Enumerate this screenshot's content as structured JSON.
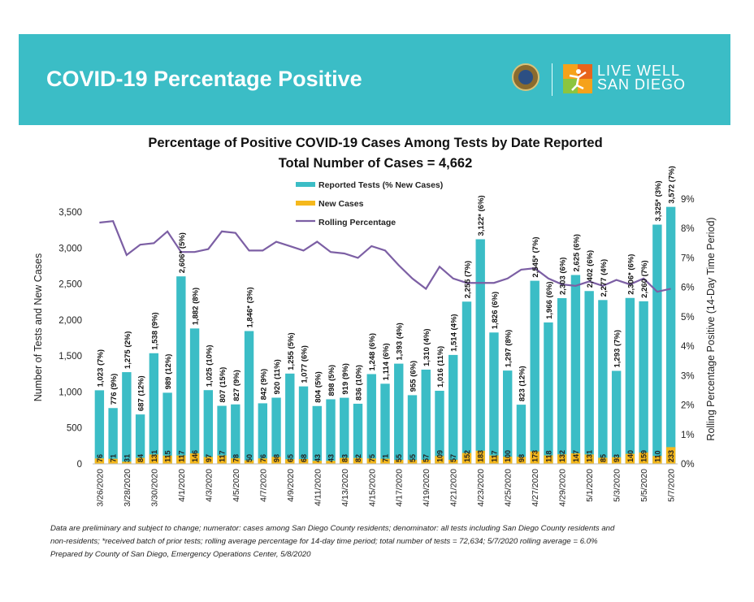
{
  "header": {
    "title": "COVID-19 Percentage Positive",
    "logo_line1": "LIVE WELL",
    "logo_line2": "SAN DIEGO"
  },
  "footnote": {
    "line1": "Data are preliminary and subject to change; numerator: cases among San Diego County residents; denominator: all tests including San Diego County residents and",
    "line2": "non-residents; *received batch of prior tests; rolling average percentage for 14-day time period; total number of tests = 72,634; 5/7/2020 rolling average = 6.0%",
    "line3": "Prepared by County of San Diego, Emergency Operations Center, 5/8/2020"
  },
  "chart_data": {
    "type": "bar",
    "title": "Percentage of Positive COVID-19 Cases Among Tests by Date Reported",
    "subtitle": "Total Number of Cases = 4,662",
    "ylabel": "Number of Tests and New Cases",
    "y2label": "Rolling Percentage Positive (14-Day Time Period)",
    "ylim": [
      0,
      3500
    ],
    "y2lim": [
      0,
      9
    ],
    "yticks": [
      "0",
      "500",
      "1,000",
      "1,500",
      "2,000",
      "2,500",
      "3,000",
      "3,500"
    ],
    "y2ticks": [
      "0%",
      "1%",
      "2%",
      "3%",
      "4%",
      "5%",
      "6%",
      "7%",
      "8%",
      "9%"
    ],
    "legend": [
      "Reported Tests (% New Cases)",
      "New Cases",
      "Rolling Percentage"
    ],
    "legend_position": "top-center",
    "colors": {
      "tests": "#3bbdc6",
      "cases": "#f5b81c",
      "rolling": "#7c5fa4"
    },
    "categories": [
      "3/26/2020",
      "3/27/2020",
      "3/28/2020",
      "3/29/2020",
      "3/30/2020",
      "3/31/2020",
      "4/1/2020",
      "4/2/2020",
      "4/3/2020",
      "4/4/2020",
      "4/5/2020",
      "4/6/2020",
      "4/7/2020",
      "4/8/2020",
      "4/9/2020",
      "4/10/2020",
      "4/11/2020",
      "4/12/2020",
      "4/13/2020",
      "4/14/2020",
      "4/15/2020",
      "4/16/2020",
      "4/17/2020",
      "4/18/2020",
      "4/19/2020",
      "4/20/2020",
      "4/21/2020",
      "4/22/2020",
      "4/23/2020",
      "4/24/2020",
      "4/25/2020",
      "4/26/2020",
      "4/27/2020",
      "4/28/2020",
      "4/29/2020",
      "4/30/2020",
      "5/1/2020",
      "5/2/2020",
      "5/3/2020",
      "5/4/2020",
      "5/5/2020",
      "5/6/2020",
      "5/7/2020"
    ],
    "x_tick_labels": [
      "3/26/2020",
      "",
      "3/28/2020",
      "",
      "3/30/2020",
      "",
      "4/1/2020",
      "",
      "4/3/2020",
      "",
      "4/5/2020",
      "",
      "4/7/2020",
      "",
      "4/9/2020",
      "",
      "4/11/2020",
      "",
      "4/13/2020",
      "",
      "4/15/2020",
      "",
      "4/17/2020",
      "",
      "4/19/2020",
      "",
      "4/21/2020",
      "",
      "4/23/2020",
      "",
      "4/25/2020",
      "",
      "4/27/2020",
      "",
      "4/29/2020",
      "",
      "5/1/2020",
      "",
      "5/3/2020",
      "",
      "5/5/2020",
      "",
      "5/7/2020"
    ],
    "tests": [
      1023,
      776,
      1275,
      687,
      1538,
      989,
      2606,
      1882,
      1025,
      807,
      827,
      1846,
      842,
      920,
      1255,
      1077,
      804,
      898,
      919,
      836,
      1248,
      1114,
      1393,
      955,
      1310,
      1016,
      1514,
      2255,
      3122,
      1826,
      1297,
      823,
      2545,
      1966,
      2303,
      2625,
      2402,
      2277,
      1293,
      2306,
      2260,
      3325,
      3572
    ],
    "cases": [
      76,
      71,
      31,
      84,
      131,
      115,
      117,
      146,
      97,
      117,
      78,
      50,
      76,
      98,
      65,
      68,
      43,
      43,
      83,
      82,
      75,
      71,
      55,
      55,
      57,
      109,
      57,
      152,
      183,
      117,
      100,
      98,
      173,
      118,
      132,
      147,
      131,
      85,
      93,
      140,
      159,
      110,
      233
    ],
    "test_labels": [
      "1,023 (7%)",
      "776 (9%)",
      "1,275 (2%)",
      "687 (12%)",
      "1,538 (9%)",
      "989 (12%)",
      "2,606* (5%)",
      "1,882 (8%)",
      "1,025 (10%)",
      "807 (15%)",
      "827 (9%)",
      "1,846* (3%)",
      "842 (9%)",
      "920 (11%)",
      "1,255 (5%)",
      "1,077 (6%)",
      "804 (5%)",
      "898 (5%)",
      "919 (9%)",
      "836 (10%)",
      "1,248 (6%)",
      "1,114 (6%)",
      "1,393 (4%)",
      "955 (6%)",
      "1,310 (4%)",
      "1,016 (11%)",
      "1,514 (4%)",
      "2,255 (7%)",
      "3,122* (6%)",
      "1,826 (6%)",
      "1,297 (8%)",
      "823 (12%)",
      "2,545* (7%)",
      "1,966 (6%)",
      "2,303 (6%)",
      "2,625 (6%)",
      "2,402 (6%)",
      "2,277 (4%)",
      "1,293 (7%)",
      "2,306* (6%)",
      "2,260 (7%)",
      "3,325* (3%)",
      "3,572 (7%)"
    ],
    "case_labels": [
      "76",
      "71",
      "31",
      "84",
      "131",
      "115",
      "117",
      "146",
      "97",
      "117",
      "78",
      "50",
      "76",
      "98",
      "65",
      "68",
      "43",
      "43",
      "83",
      "82",
      "75",
      "71",
      "55",
      "55",
      "57",
      "109",
      "57",
      "152",
      "183",
      "117",
      "100",
      "98",
      "173",
      "118",
      "132",
      "147",
      "131",
      "85",
      "93",
      "140",
      "159",
      "110",
      "233"
    ],
    "rolling_pct": [
      8.2,
      8.25,
      7.1,
      7.45,
      7.5,
      7.9,
      7.2,
      7.2,
      7.3,
      7.9,
      7.85,
      7.25,
      7.25,
      7.55,
      7.4,
      7.25,
      7.55,
      7.2,
      7.15,
      7.0,
      7.4,
      7.25,
      6.75,
      6.3,
      5.95,
      6.7,
      6.3,
      6.15,
      6.15,
      6.15,
      6.3,
      6.6,
      6.65,
      6.3,
      6.1,
      6.05,
      6.2,
      6.05,
      6.25,
      6.1,
      6.3,
      5.85,
      5.95
    ]
  }
}
